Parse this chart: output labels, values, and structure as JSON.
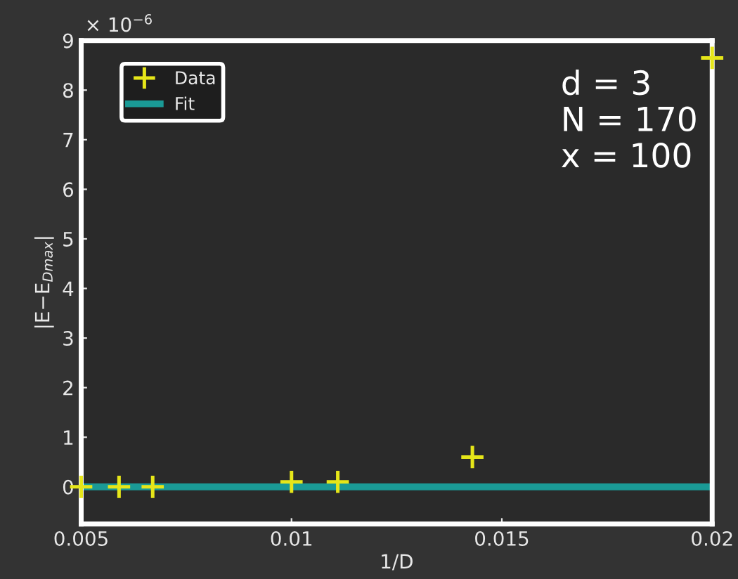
{
  "chart_data": {
    "type": "scatter",
    "xlabel": "1/D",
    "ylabel": "|E−E$_{Dmax}$|",
    "annotations": [
      "× 10$^{−6}$",
      "d = 3",
      "N = 170",
      "x = 100"
    ],
    "series": [
      {
        "name": "Data",
        "marker": "cross",
        "color": "#e6e619",
        "x": [
          0.005,
          0.0059,
          0.0067,
          0.01,
          0.0111,
          0.0143,
          0.02
        ],
        "values": [
          0,
          0,
          0,
          0.1,
          0.1,
          0.6,
          8.65
        ]
      },
      {
        "name": "Fit",
        "type": "line",
        "marker": "none",
        "color": "#1a9a96",
        "x": [
          0.005,
          0.02
        ],
        "values": [
          0,
          0
        ]
      }
    ],
    "xlim": [
      0.005,
      0.02
    ],
    "xticks": [
      0.005,
      0.01,
      0.015,
      0.02
    ],
    "ylim": [
      -0.75,
      9
    ],
    "yticks": [
      0,
      1,
      2,
      3,
      4,
      5,
      6,
      7,
      8,
      9
    ],
    "grid": false,
    "legend": "top left"
  }
}
